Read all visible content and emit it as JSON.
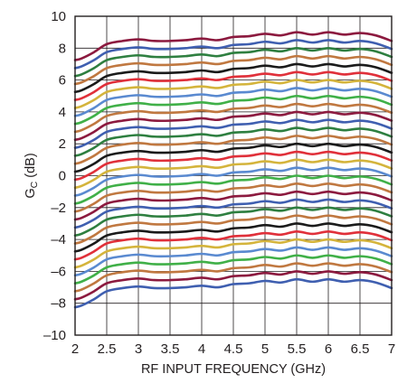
{
  "chart_data": {
    "type": "line",
    "title": "",
    "xlabel": "RF INPUT FREQUENCY (GHz)",
    "ylabel": {
      "main": "G",
      "sub": "C",
      "unit": " (dB)"
    },
    "xlim": [
      2,
      7
    ],
    "ylim": [
      -10,
      10
    ],
    "xticks": [
      2,
      2.5,
      3,
      3.5,
      4,
      4.5,
      5,
      5.5,
      6,
      6.5,
      7
    ],
    "xtick_labels": [
      "2",
      "2.5",
      "3",
      "3.5",
      "4",
      "4.5",
      "5",
      "5.5",
      "6",
      "6.5",
      "7"
    ],
    "yticks": [
      -10,
      -8,
      -6,
      -4,
      -2,
      0,
      2,
      4,
      6,
      8,
      10
    ],
    "ytick_labels": [
      "–10",
      "–8",
      "–6",
      "–4",
      "–2",
      "0",
      "2",
      "4",
      "6",
      "8",
      "10"
    ],
    "grid": true,
    "legend": "none",
    "x": [
      2.0,
      2.1,
      2.3,
      2.5,
      2.75,
      3.0,
      3.25,
      3.5,
      3.75,
      4.0,
      4.25,
      4.5,
      4.75,
      5.0,
      5.25,
      5.5,
      5.75,
      6.0,
      6.25,
      6.5,
      6.75,
      7.0
    ],
    "base_shape": [
      -1.25,
      -1.15,
      -0.75,
      -0.25,
      -0.05,
      0.05,
      -0.05,
      -0.05,
      0.0,
      0.1,
      0.0,
      0.2,
      0.25,
      0.4,
      0.3,
      0.5,
      0.35,
      0.5,
      0.35,
      0.45,
      0.3,
      -0.05
    ],
    "series_offsets": [
      8.5,
      8.0,
      7.5,
      7.0,
      6.5,
      6.0,
      5.5,
      5.0,
      4.5,
      4.0,
      3.5,
      3.0,
      2.5,
      2.0,
      1.5,
      1.0,
      0.5,
      0.0,
      -0.5,
      -1.0,
      -1.5,
      -2.0,
      -2.5,
      -3.0,
      -3.5,
      -4.0,
      -4.5,
      -5.0,
      -5.5,
      -6.0,
      -6.5,
      -7.0
    ],
    "series_colors": [
      "#8c1a3f",
      "#3f5fb0",
      "#2e7f40",
      "#c07840",
      "#1a1a1a",
      "#e0303a",
      "#d4b43c",
      "#5a8ad0",
      "#40b048",
      "#c07840",
      "#8c1a3f",
      "#3f5fb0",
      "#2e7f40",
      "#c07840",
      "#1a1a1a",
      "#e0303a",
      "#d4b43c",
      "#5a8ad0",
      "#40b048",
      "#c07840",
      "#8c1a3f",
      "#3f5fb0",
      "#2e7f40",
      "#c07840",
      "#1a1a1a",
      "#e0303a",
      "#d4b43c",
      "#5a8ad0",
      "#40b048",
      "#c07840",
      "#8c1a3f",
      "#3f5fb0"
    ]
  }
}
